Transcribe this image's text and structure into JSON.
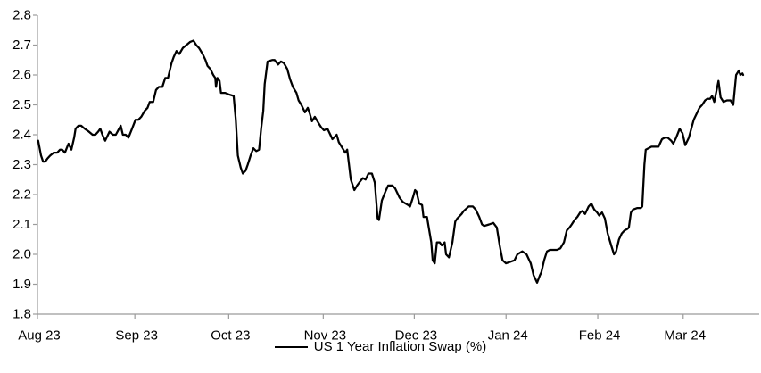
{
  "colors": {
    "line": "#000000",
    "axis": "#9b9b9b",
    "tick": "#9b9b9b",
    "text": "#000000",
    "background": "#ffffff"
  },
  "chart_data": {
    "type": "line",
    "title": "",
    "grid": false,
    "legend": {
      "position": "bottom-center",
      "entries": [
        {
          "label": "US 1 Year Inflation Swap (%)",
          "color": "#000000",
          "marker": "line"
        }
      ]
    },
    "y_axis": {
      "min": 1.8,
      "max": 2.8,
      "tick_step": 0.1,
      "decimals": 1
    },
    "y_ticks": [
      1.8,
      1.9,
      2.0,
      2.1,
      2.2,
      2.3,
      2.4,
      2.5,
      2.6,
      2.7,
      2.8
    ],
    "x_axis": {
      "note": "time axis Aug 2023 - Mar 2024, positions given as fraction 0-1 of plotted span"
    },
    "x_ticks": [
      {
        "label": "Aug 23",
        "f": 0.0
      },
      {
        "label": "Sep 23",
        "f": 0.138
      },
      {
        "label": "Oct 23",
        "f": 0.271
      },
      {
        "label": "Nov 23",
        "f": 0.405
      },
      {
        "label": "Dec 23",
        "f": 0.534
      },
      {
        "label": "Jan 24",
        "f": 0.664
      },
      {
        "label": "Feb 24",
        "f": 0.794
      },
      {
        "label": "Mar 24",
        "f": 0.915
      }
    ],
    "series": [
      {
        "name": "US 1 Year Inflation Swap (%)",
        "color": "#000000",
        "points": [
          [
            0.001,
            2.38
          ],
          [
            0.005,
            2.33
          ],
          [
            0.008,
            2.31
          ],
          [
            0.011,
            2.31
          ],
          [
            0.014,
            2.32
          ],
          [
            0.018,
            2.33
          ],
          [
            0.023,
            2.34
          ],
          [
            0.028,
            2.34
          ],
          [
            0.032,
            2.35
          ],
          [
            0.035,
            2.35
          ],
          [
            0.039,
            2.34
          ],
          [
            0.044,
            2.37
          ],
          [
            0.048,
            2.35
          ],
          [
            0.052,
            2.39
          ],
          [
            0.054,
            2.42
          ],
          [
            0.058,
            2.43
          ],
          [
            0.062,
            2.43
          ],
          [
            0.067,
            2.42
          ],
          [
            0.073,
            2.41
          ],
          [
            0.078,
            2.4
          ],
          [
            0.082,
            2.4
          ],
          [
            0.086,
            2.41
          ],
          [
            0.089,
            2.42
          ],
          [
            0.092,
            2.4
          ],
          [
            0.096,
            2.38
          ],
          [
            0.102,
            2.41
          ],
          [
            0.107,
            2.4
          ],
          [
            0.111,
            2.4
          ],
          [
            0.118,
            2.43
          ],
          [
            0.121,
            2.4
          ],
          [
            0.125,
            2.4
          ],
          [
            0.129,
            2.39
          ],
          [
            0.134,
            2.42
          ],
          [
            0.139,
            2.45
          ],
          [
            0.143,
            2.45
          ],
          [
            0.147,
            2.46
          ],
          [
            0.152,
            2.48
          ],
          [
            0.156,
            2.49
          ],
          [
            0.159,
            2.51
          ],
          [
            0.164,
            2.51
          ],
          [
            0.168,
            2.55
          ],
          [
            0.172,
            2.56
          ],
          [
            0.177,
            2.56
          ],
          [
            0.181,
            2.59
          ],
          [
            0.185,
            2.59
          ],
          [
            0.19,
            2.64
          ],
          [
            0.193,
            2.66
          ],
          [
            0.197,
            2.68
          ],
          [
            0.201,
            2.67
          ],
          [
            0.206,
            2.69
          ],
          [
            0.211,
            2.7
          ],
          [
            0.216,
            2.71
          ],
          [
            0.221,
            2.715
          ],
          [
            0.225,
            2.7
          ],
          [
            0.229,
            2.69
          ],
          [
            0.234,
            2.67
          ],
          [
            0.238,
            2.65
          ],
          [
            0.241,
            2.63
          ],
          [
            0.245,
            2.62
          ],
          [
            0.249,
            2.6
          ],
          [
            0.252,
            2.59
          ],
          [
            0.253,
            2.56
          ],
          [
            0.255,
            2.59
          ],
          [
            0.258,
            2.58
          ],
          [
            0.26,
            2.54
          ],
          [
            0.266,
            2.54
          ],
          [
            0.271,
            2.535
          ],
          [
            0.278,
            2.53
          ],
          [
            0.281,
            2.45
          ],
          [
            0.284,
            2.33
          ],
          [
            0.288,
            2.29
          ],
          [
            0.291,
            2.27
          ],
          [
            0.295,
            2.28
          ],
          [
            0.298,
            2.3
          ],
          [
            0.302,
            2.33
          ],
          [
            0.306,
            2.355
          ],
          [
            0.31,
            2.345
          ],
          [
            0.314,
            2.35
          ],
          [
            0.317,
            2.42
          ],
          [
            0.32,
            2.48
          ],
          [
            0.322,
            2.57
          ],
          [
            0.326,
            2.645
          ],
          [
            0.333,
            2.65
          ],
          [
            0.336,
            2.65
          ],
          [
            0.341,
            2.635
          ],
          [
            0.345,
            2.645
          ],
          [
            0.349,
            2.64
          ],
          [
            0.354,
            2.62
          ],
          [
            0.358,
            2.585
          ],
          [
            0.362,
            2.56
          ],
          [
            0.367,
            2.54
          ],
          [
            0.37,
            2.515
          ],
          [
            0.374,
            2.5
          ],
          [
            0.379,
            2.475
          ],
          [
            0.383,
            2.49
          ],
          [
            0.386,
            2.47
          ],
          [
            0.389,
            2.445
          ],
          [
            0.393,
            2.46
          ],
          [
            0.398,
            2.44
          ],
          [
            0.402,
            2.425
          ],
          [
            0.406,
            2.415
          ],
          [
            0.411,
            2.42
          ],
          [
            0.415,
            2.4
          ],
          [
            0.418,
            2.385
          ],
          [
            0.424,
            2.4
          ],
          [
            0.427,
            2.375
          ],
          [
            0.431,
            2.36
          ],
          [
            0.436,
            2.34
          ],
          [
            0.439,
            2.35
          ],
          [
            0.441,
            2.31
          ],
          [
            0.444,
            2.25
          ],
          [
            0.449,
            2.215
          ],
          [
            0.453,
            2.23
          ],
          [
            0.456,
            2.24
          ],
          [
            0.461,
            2.255
          ],
          [
            0.465,
            2.25
          ],
          [
            0.469,
            2.27
          ],
          [
            0.474,
            2.27
          ],
          [
            0.478,
            2.24
          ],
          [
            0.482,
            2.12
          ],
          [
            0.484,
            2.115
          ],
          [
            0.488,
            2.18
          ],
          [
            0.493,
            2.21
          ],
          [
            0.497,
            2.23
          ],
          [
            0.503,
            2.23
          ],
          [
            0.507,
            2.22
          ],
          [
            0.513,
            2.19
          ],
          [
            0.518,
            2.175
          ],
          [
            0.525,
            2.165
          ],
          [
            0.528,
            2.16
          ],
          [
            0.532,
            2.19
          ],
          [
            0.535,
            2.215
          ],
          [
            0.537,
            2.21
          ],
          [
            0.541,
            2.17
          ],
          [
            0.545,
            2.165
          ],
          [
            0.547,
            2.125
          ],
          [
            0.552,
            2.125
          ],
          [
            0.558,
            2.04
          ],
          [
            0.56,
            1.98
          ],
          [
            0.563,
            1.97
          ],
          [
            0.566,
            2.04
          ],
          [
            0.57,
            2.04
          ],
          [
            0.573,
            2.03
          ],
          [
            0.577,
            2.04
          ],
          [
            0.579,
            2.0
          ],
          [
            0.583,
            1.99
          ],
          [
            0.588,
            2.04
          ],
          [
            0.592,
            2.11
          ],
          [
            0.595,
            2.12
          ],
          [
            0.601,
            2.135
          ],
          [
            0.604,
            2.145
          ],
          [
            0.611,
            2.16
          ],
          [
            0.617,
            2.16
          ],
          [
            0.621,
            2.15
          ],
          [
            0.626,
            2.125
          ],
          [
            0.63,
            2.1
          ],
          [
            0.633,
            2.095
          ],
          [
            0.64,
            2.1
          ],
          [
            0.646,
            2.105
          ],
          [
            0.651,
            2.09
          ],
          [
            0.655,
            2.03
          ],
          [
            0.659,
            1.98
          ],
          [
            0.664,
            1.97
          ],
          [
            0.67,
            1.975
          ],
          [
            0.676,
            1.98
          ],
          [
            0.68,
            2.0
          ],
          [
            0.687,
            2.01
          ],
          [
            0.693,
            2.0
          ],
          [
            0.699,
            1.97
          ],
          [
            0.703,
            1.93
          ],
          [
            0.705,
            1.92
          ],
          [
            0.708,
            1.905
          ],
          [
            0.712,
            1.93
          ],
          [
            0.714,
            1.94
          ],
          [
            0.718,
            1.98
          ],
          [
            0.722,
            2.01
          ],
          [
            0.726,
            2.015
          ],
          [
            0.731,
            2.015
          ],
          [
            0.736,
            2.015
          ],
          [
            0.741,
            2.02
          ],
          [
            0.746,
            2.04
          ],
          [
            0.75,
            2.08
          ],
          [
            0.754,
            2.09
          ],
          [
            0.757,
            2.1
          ],
          [
            0.761,
            2.115
          ],
          [
            0.765,
            2.125
          ],
          [
            0.769,
            2.14
          ],
          [
            0.772,
            2.145
          ],
          [
            0.776,
            2.135
          ],
          [
            0.781,
            2.16
          ],
          [
            0.785,
            2.17
          ],
          [
            0.789,
            2.15
          ],
          [
            0.793,
            2.14
          ],
          [
            0.796,
            2.13
          ],
          [
            0.8,
            2.14
          ],
          [
            0.804,
            2.12
          ],
          [
            0.808,
            2.07
          ],
          [
            0.813,
            2.03
          ],
          [
            0.817,
            2.0
          ],
          [
            0.82,
            2.01
          ],
          [
            0.824,
            2.05
          ],
          [
            0.828,
            2.07
          ],
          [
            0.832,
            2.08
          ],
          [
            0.836,
            2.085
          ],
          [
            0.838,
            2.09
          ],
          [
            0.841,
            2.14
          ],
          [
            0.844,
            2.15
          ],
          [
            0.85,
            2.155
          ],
          [
            0.855,
            2.155
          ],
          [
            0.857,
            2.16
          ],
          [
            0.86,
            2.3
          ],
          [
            0.862,
            2.35
          ],
          [
            0.866,
            2.355
          ],
          [
            0.87,
            2.36
          ],
          [
            0.875,
            2.36
          ],
          [
            0.88,
            2.36
          ],
          [
            0.885,
            2.385
          ],
          [
            0.889,
            2.39
          ],
          [
            0.893,
            2.39
          ],
          [
            0.898,
            2.38
          ],
          [
            0.901,
            2.37
          ],
          [
            0.905,
            2.39
          ],
          [
            0.91,
            2.42
          ],
          [
            0.914,
            2.405
          ],
          [
            0.918,
            2.365
          ],
          [
            0.923,
            2.39
          ],
          [
            0.927,
            2.425
          ],
          [
            0.93,
            2.45
          ],
          [
            0.934,
            2.47
          ],
          [
            0.938,
            2.49
          ],
          [
            0.942,
            2.5
          ],
          [
            0.946,
            2.515
          ],
          [
            0.949,
            2.52
          ],
          [
            0.953,
            2.52
          ],
          [
            0.956,
            2.53
          ],
          [
            0.959,
            2.51
          ],
          [
            0.965,
            2.58
          ],
          [
            0.968,
            2.525
          ],
          [
            0.972,
            2.51
          ],
          [
            0.977,
            2.515
          ],
          [
            0.982,
            2.515
          ],
          [
            0.986,
            2.5
          ],
          [
            0.99,
            2.6
          ],
          [
            0.994,
            2.615
          ],
          [
            0.996,
            2.6
          ],
          [
            0.999,
            2.605
          ],
          [
            1.0,
            2.6
          ]
        ]
      }
    ]
  }
}
